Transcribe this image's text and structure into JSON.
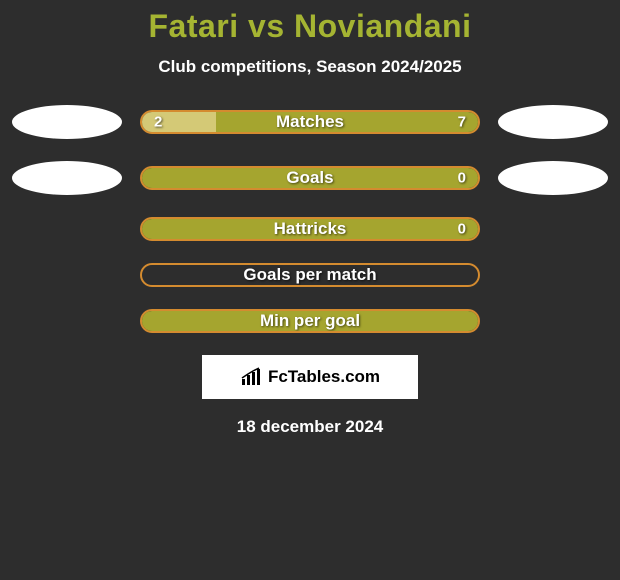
{
  "title": "Fatari vs Noviandani",
  "subtitle": "Club competitions, Season 2024/2025",
  "background_color": "#2d2d2d",
  "title_color": "#a5b432",
  "text_color": "#ffffff",
  "olive": "#a5a52f",
  "beige": "#d4c976",
  "orange": "#d48b2f",
  "badge_color": "#ffffff",
  "rows": [
    {
      "label": "Matches",
      "left_val": "2",
      "right_val": "7",
      "left_pct": 22,
      "right_pct": 78,
      "left_color": "#d4c976",
      "right_color": "#a5a52f",
      "border_color": "#d48b2f",
      "show_left_badge": true,
      "show_right_badge": true
    },
    {
      "label": "Goals",
      "left_val": "",
      "right_val": "0",
      "left_pct": 100,
      "right_pct": 0,
      "left_color": "#a5a52f",
      "right_color": "#a5a52f",
      "border_color": "#d48b2f",
      "show_left_badge": true,
      "show_right_badge": true
    },
    {
      "label": "Hattricks",
      "left_val": "",
      "right_val": "0",
      "left_pct": 100,
      "right_pct": 0,
      "left_color": "#a5a52f",
      "right_color": "#a5a52f",
      "border_color": "#d48b2f",
      "show_left_badge": false,
      "show_right_badge": false
    },
    {
      "label": "Goals per match",
      "left_val": "",
      "right_val": "",
      "left_pct": 0,
      "right_pct": 0,
      "left_color": "#a5a52f",
      "right_color": "#a5a52f",
      "border_color": "#d48b2f",
      "show_left_badge": false,
      "show_right_badge": false
    },
    {
      "label": "Min per goal",
      "left_val": "",
      "right_val": "",
      "left_pct": 100,
      "right_pct": 0,
      "left_color": "#a5a52f",
      "right_color": "#a5a52f",
      "border_color": "#d48b2f",
      "show_left_badge": false,
      "show_right_badge": false
    }
  ],
  "brand": "FcTables.com",
  "date": "18 december 2024"
}
